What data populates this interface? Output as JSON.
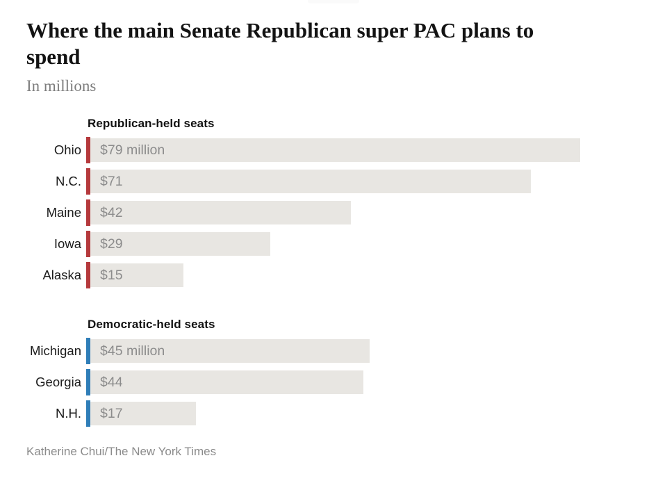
{
  "header": {
    "title": "Where the main Senate Republican super PAC plans to spend",
    "subtitle": "In millions"
  },
  "chart_data": {
    "type": "bar",
    "orientation": "horizontal",
    "title": "Where the main Senate Republican super PAC plans to spend",
    "unit_note": "In millions",
    "value_unit": "millions of dollars",
    "xlim": [
      0,
      79
    ],
    "max_value": 79,
    "grid": false,
    "legend": "none",
    "colors": {
      "republican_accent": "#b5393c",
      "democratic_accent": "#2f7eb8",
      "bar_fill": "#e8e6e2",
      "value_text": "#8c8c8c"
    },
    "sections": [
      {
        "label": "Republican-held seats",
        "accent": "#b5393c",
        "rows": [
          {
            "category": "Ohio",
            "value": 79,
            "value_label": "$79 million"
          },
          {
            "category": "N.C.",
            "value": 71,
            "value_label": "$71"
          },
          {
            "category": "Maine",
            "value": 42,
            "value_label": "$42"
          },
          {
            "category": "Iowa",
            "value": 29,
            "value_label": "$29"
          },
          {
            "category": "Alaska",
            "value": 15,
            "value_label": "$15"
          }
        ]
      },
      {
        "label": "Democratic-held seats",
        "accent": "#2f7eb8",
        "rows": [
          {
            "category": "Michigan",
            "value": 45,
            "value_label": "$45 million"
          },
          {
            "category": "Georgia",
            "value": 44,
            "value_label": "$44"
          },
          {
            "category": "N.H.",
            "value": 17,
            "value_label": "$17"
          }
        ]
      }
    ]
  },
  "footer": {
    "credit": "Katherine Chui/The New York Times"
  }
}
